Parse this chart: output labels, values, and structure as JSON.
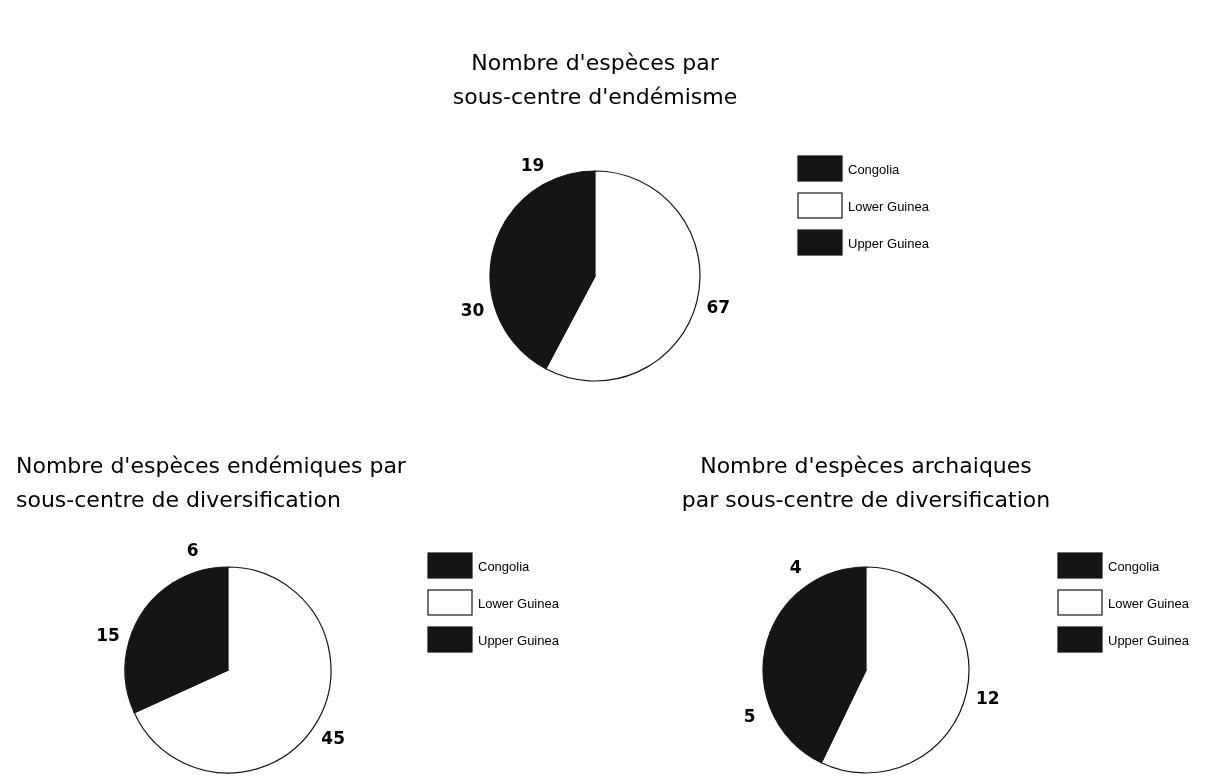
{
  "chart_data": [
    {
      "type": "pie",
      "title": "Nombre d'espèces par\nsous-centre d'endémisme",
      "categories": [
        "Congolia",
        "Lower Guinea",
        "Upper Guinea"
      ],
      "values": [
        19,
        67,
        30
      ],
      "colors": [
        "#151515",
        "#ffffff",
        "#151515"
      ],
      "data_labels": true,
      "legend": "right"
    },
    {
      "type": "pie",
      "title": "Nombre d'espèces endémiques par\nsous-centre de diversification",
      "categories": [
        "Congolia",
        "Lower Guinea",
        "Upper Guinea"
      ],
      "values": [
        6,
        45,
        15
      ],
      "colors": [
        "#151515",
        "#ffffff",
        "#151515"
      ],
      "data_labels": true,
      "legend": "right"
    },
    {
      "type": "pie",
      "title": "Nombre d'espèces archaiques\npar sous-centre de diversification",
      "categories": [
        "Congolia",
        "Lower Guinea",
        "Upper Guinea"
      ],
      "values": [
        4,
        12,
        5
      ],
      "colors": [
        "#151515",
        "#ffffff",
        "#151515"
      ],
      "data_labels": true,
      "legend": "right"
    }
  ]
}
